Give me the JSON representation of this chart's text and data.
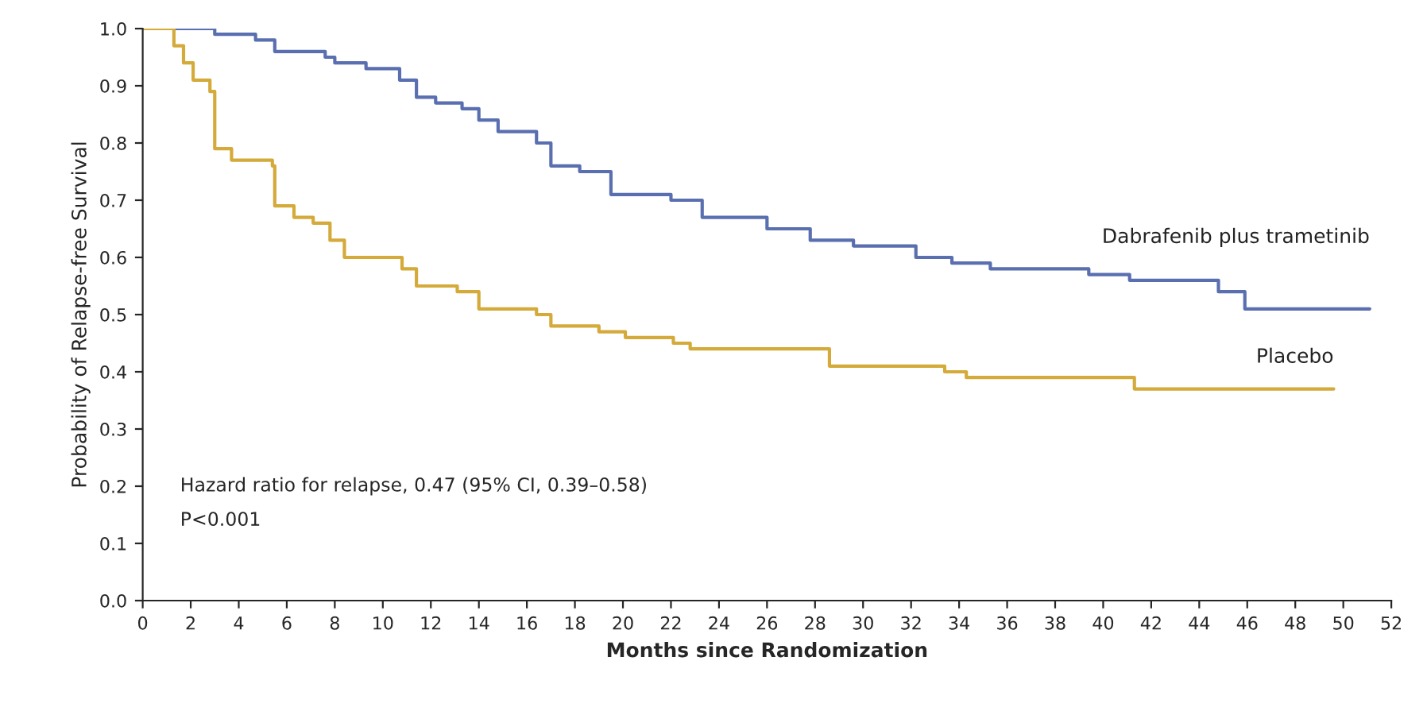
{
  "chart_data": {
    "type": "step",
    "xlabel": "Months since Randomization",
    "ylabel": "Probability of Relapse-free Survival",
    "xlim": [
      0,
      52
    ],
    "xticks": [
      0,
      2,
      4,
      6,
      8,
      10,
      12,
      14,
      16,
      18,
      20,
      22,
      24,
      26,
      28,
      30,
      32,
      34,
      36,
      38,
      40,
      42,
      44,
      46,
      48,
      50,
      52
    ],
    "ylim": [
      0,
      1.0
    ],
    "yticks": [
      {
        "value": 0,
        "label": "0.0"
      },
      {
        "value": 0.1,
        "label": "0.1"
      },
      {
        "value": 0.2,
        "label": "0.2"
      },
      {
        "value": 0.3,
        "label": "0.3"
      },
      {
        "value": 0.4,
        "label": "0.4"
      },
      {
        "value": 0.5,
        "label": "0.5"
      },
      {
        "value": 0.6,
        "label": "0.6"
      },
      {
        "value": 0.7,
        "label": "0.7"
      },
      {
        "value": 0.8,
        "label": "0.8"
      },
      {
        "value": 0.9,
        "label": "0.9"
      },
      {
        "value": 1.0,
        "label": "1.0"
      }
    ],
    "grid": false,
    "legend": false,
    "line_style": "solid",
    "series": [
      {
        "name": "Dabrafenib plus trametinib",
        "color": "#5a6fb0",
        "x": [
          0,
          3,
          4.7,
          5.5,
          7.6,
          8,
          9.3,
          10.7,
          11.4,
          12.2,
          13.3,
          14,
          14.8,
          16.4,
          17,
          18.2,
          19.5,
          22,
          23.3,
          26,
          27.8,
          29.6,
          32.2,
          33.7,
          35.3,
          39.4,
          41.1,
          44.8,
          45.9,
          51.1
        ],
        "values": [
          1.0,
          0.99,
          0.98,
          0.96,
          0.95,
          0.94,
          0.93,
          0.91,
          0.88,
          0.87,
          0.86,
          0.84,
          0.82,
          0.8,
          0.76,
          0.75,
          0.71,
          0.7,
          0.67,
          0.65,
          0.63,
          0.62,
          0.6,
          0.59,
          0.58,
          0.57,
          0.56,
          0.54,
          0.51,
          0.51
        ]
      },
      {
        "name": "Placebo",
        "color": "#d4aa3a",
        "x": [
          0,
          0.8,
          1.3,
          1.7,
          2.1,
          2.8,
          3,
          3.7,
          5.4,
          5.5,
          6.3,
          7.1,
          7.8,
          8.4,
          10.8,
          11.4,
          13.1,
          14,
          16.4,
          17,
          19,
          20.1,
          22.1,
          22.8,
          26.2,
          28.6,
          33.4,
          34.3,
          41.3,
          49.6
        ],
        "values": [
          1.0,
          1.0,
          0.97,
          0.94,
          0.91,
          0.89,
          0.79,
          0.77,
          0.76,
          0.69,
          0.67,
          0.66,
          0.63,
          0.6,
          0.58,
          0.55,
          0.54,
          0.51,
          0.5,
          0.48,
          0.47,
          0.46,
          0.45,
          0.44,
          0.44,
          0.41,
          0.4,
          0.39,
          0.37,
          0.37
        ]
      }
    ],
    "annotations": [
      "Hazard ratio for relapse, 0.47 (95% CI, 0.39–0.58)",
      "P<0.001"
    ]
  }
}
